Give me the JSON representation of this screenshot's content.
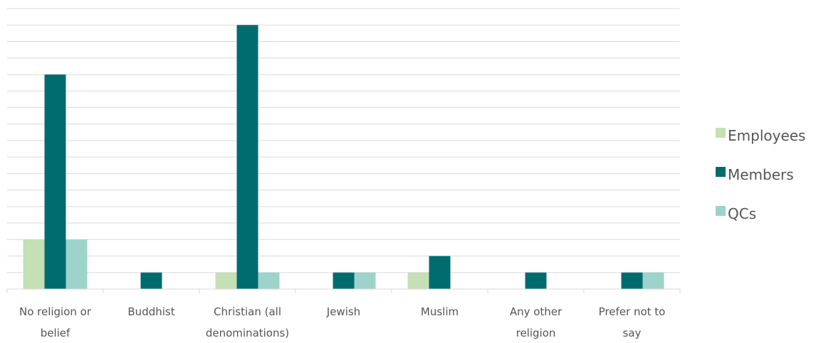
{
  "chart_data": {
    "type": "bar",
    "categories": [
      [
        "No religion or",
        "belief"
      ],
      [
        "Buddhist"
      ],
      [
        "Christian (all",
        "denominations)"
      ],
      [
        "Jewish"
      ],
      [
        "Muslim"
      ],
      [
        "Any other",
        "religion"
      ],
      [
        "Prefer not to",
        "say"
      ]
    ],
    "series": [
      {
        "name": "Employees",
        "color": "#c5e0b4",
        "values": [
          3,
          0,
          1,
          0,
          1,
          0,
          0
        ]
      },
      {
        "name": "Members",
        "color": "#006c70",
        "values": [
          13,
          1,
          16,
          1,
          2,
          1,
          1
        ]
      },
      {
        "name": "QCs",
        "color": "#9dd3cb",
        "values": [
          3,
          0,
          1,
          1,
          0,
          0,
          1
        ]
      }
    ],
    "ylim": [
      0,
      17
    ],
    "grid": true,
    "legend": "right",
    "y_tick_labels_shown": false
  }
}
